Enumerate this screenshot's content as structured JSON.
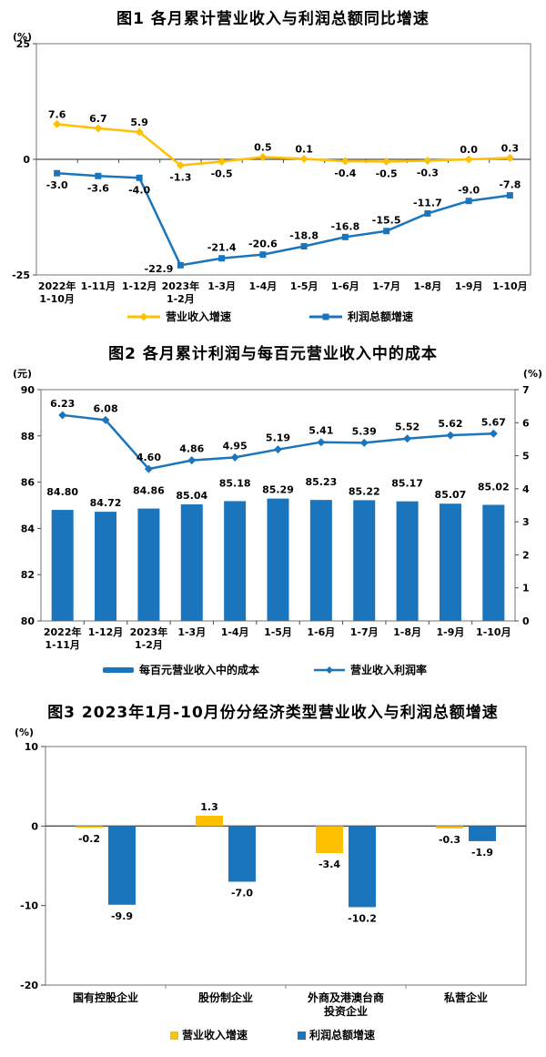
{
  "page": {
    "background": "#ffffff"
  },
  "colors": {
    "yellow": "#FFC000",
    "blue": "#1B75BC",
    "axis_border": "#8C8C8C",
    "zero_line": "#4D4D4D",
    "label_text": "#000000"
  },
  "chart_data": [
    {
      "figure": "图1",
      "type": "line",
      "title": "图1 各月累计营业收入与利润总额同比增速",
      "unit_left": "(%)",
      "ylim": [
        -25,
        25
      ],
      "yticks": [
        25,
        0,
        -25
      ],
      "grid": false,
      "legend_position": "bottom",
      "categories": [
        [
          "2022年",
          "1-10月"
        ],
        "1-11月",
        "1-12月",
        [
          "2023年",
          "1-2月"
        ],
        "1-3月",
        "1-4月",
        "1-5月",
        "1-6月",
        "1-7月",
        "1-8月",
        "1-9月",
        "1-10月"
      ],
      "series": [
        {
          "name": "营业收入增速",
          "color_role": "yellow",
          "marker": "diamond",
          "values": [
            7.6,
            6.7,
            5.9,
            -1.3,
            -0.5,
            0.5,
            0.1,
            -0.4,
            -0.5,
            -0.3,
            0.0,
            0.3
          ],
          "labels": [
            "7.6",
            "6.7",
            "5.9",
            "-1.3",
            "-0.5",
            "0.5",
            "0.1",
            "-0.4",
            "-0.5",
            "-0.3",
            "0.0",
            "0.3"
          ]
        },
        {
          "name": "利润总额增速",
          "color_role": "blue",
          "marker": "square",
          "values": [
            -3.0,
            -3.6,
            -4.0,
            -22.9,
            -21.4,
            -20.6,
            -18.8,
            -16.8,
            -15.5,
            -11.7,
            -9.0,
            -7.8
          ],
          "labels": [
            "-3.0",
            "-3.6",
            "-4.0",
            "-22.9",
            "-21.4",
            "-20.6",
            "-18.8",
            "-16.8",
            "-15.5",
            "-11.7",
            "-9.0",
            "-7.8"
          ]
        }
      ]
    },
    {
      "figure": "图2",
      "type": "bar+line",
      "title": "图2 各月累计利润与每百元营业收入中的成本",
      "unit_left": "(元)",
      "unit_right": "(%)",
      "ylim_left": [
        80,
        90
      ],
      "yticks_left": [
        90,
        88,
        86,
        84,
        82,
        80
      ],
      "ylim_right": [
        0,
        7
      ],
      "yticks_right": [
        7,
        6,
        5,
        4,
        3,
        2,
        1,
        0
      ],
      "grid": false,
      "legend_position": "bottom",
      "categories": [
        [
          "2022年",
          "1-11月"
        ],
        "1-12月",
        [
          "2023年",
          "1-2月"
        ],
        "1-3月",
        "1-4月",
        "1-5月",
        "1-6月",
        "1-7月",
        "1-8月",
        "1-9月",
        "1-10月"
      ],
      "series": [
        {
          "name": "每百元营业收入中的成本",
          "type": "bar",
          "axis": "left",
          "color_role": "blue",
          "values": [
            84.8,
            84.72,
            84.86,
            85.04,
            85.18,
            85.29,
            85.23,
            85.22,
            85.17,
            85.07,
            85.02
          ],
          "labels": [
            "84.80",
            "84.72",
            "84.86",
            "85.04",
            "85.18",
            "85.29",
            "85.23",
            "85.22",
            "85.17",
            "85.07",
            "85.02"
          ]
        },
        {
          "name": "营业收入利润率",
          "type": "line",
          "axis": "right",
          "color_role": "blue",
          "marker": "diamond",
          "values": [
            6.23,
            6.08,
            4.6,
            4.86,
            4.95,
            5.19,
            5.41,
            5.39,
            5.52,
            5.62,
            5.67
          ],
          "labels": [
            "6.23",
            "6.08",
            "4.60",
            "4.86",
            "4.95",
            "5.19",
            "5.41",
            "5.39",
            "5.52",
            "5.62",
            "5.67"
          ]
        }
      ]
    },
    {
      "figure": "图3",
      "type": "bar",
      "title": "图3 2023年1月-10月份分经济类型营业收入与利润总额增速",
      "unit_left": "(%)",
      "ylim": [
        -20,
        10
      ],
      "yticks": [
        10,
        0,
        -10,
        -20
      ],
      "grid": false,
      "legend_position": "bottom",
      "categories": [
        "国有控股企业",
        "股份制企业",
        [
          "外商及港澳台商",
          "投资企业"
        ],
        "私营企业"
      ],
      "series": [
        {
          "name": "营业收入增速",
          "color_role": "yellow",
          "values": [
            -0.2,
            1.3,
            -3.4,
            -0.3
          ],
          "labels": [
            "-0.2",
            "1.3",
            "-3.4",
            "-0.3"
          ]
        },
        {
          "name": "利润总额增速",
          "color_role": "blue",
          "values": [
            -9.9,
            -7.0,
            -10.2,
            -1.9
          ],
          "labels": [
            "-9.9",
            "-7.0",
            "-10.2",
            "-1.9"
          ]
        }
      ]
    }
  ]
}
